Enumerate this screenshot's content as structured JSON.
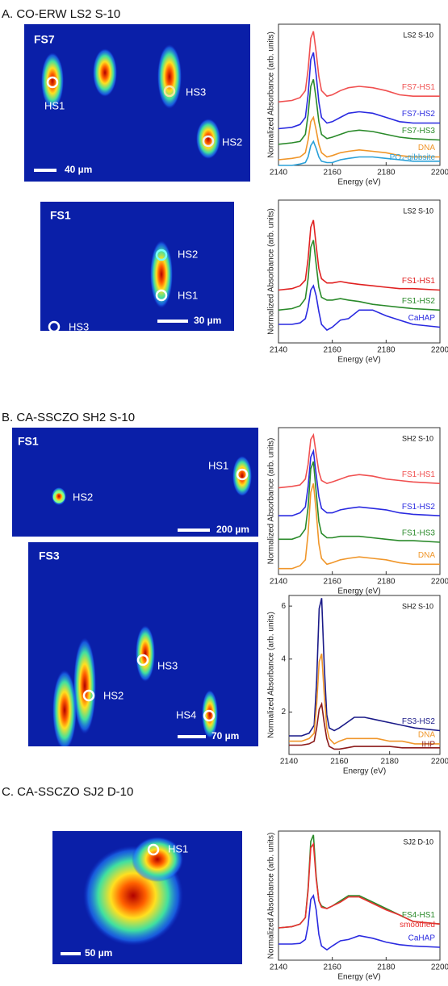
{
  "sections": [
    "A. CO-ERW LS2 S-10",
    "B. CA-SSCZO SH2 S-10",
    "C. CA-SSCZO SJ2 D-10"
  ],
  "maps": [
    {
      "label": "FS7",
      "spots": [
        "HS1",
        "HS2",
        "HS3"
      ],
      "scale_bar": "40 µm"
    },
    {
      "label": "FS1",
      "spots": [
        "HS2",
        "HS1",
        "HS3"
      ],
      "scale_bar": "30 µm"
    },
    {
      "label": "FS1",
      "spots": [
        "HS1",
        "HS2"
      ],
      "scale_bar": "200 µm"
    },
    {
      "label": "FS3",
      "spots": [
        "HS2",
        "HS3",
        "HS4"
      ],
      "scale_bar": "70 µm"
    },
    {
      "spots": [
        "HS1"
      ],
      "scale_bar": "50 µm"
    }
  ],
  "chart_data": [
    {
      "type": "line",
      "annotation": "LS2 S-10",
      "xlabel": "Energy (eV)",
      "ylabel": "Normalized Absorbance (arb. units)",
      "xlim": [
        2140,
        2200
      ],
      "xticks": [
        2140,
        2160,
        2180,
        2200
      ],
      "ylim": [
        0,
        10
      ],
      "x": [
        2140,
        2145,
        2148,
        2150,
        2151,
        2152,
        2153,
        2154,
        2155,
        2156,
        2158,
        2160,
        2163,
        2166,
        2170,
        2175,
        2180,
        2185,
        2190,
        2200
      ],
      "series": [
        {
          "name": "FS7-HS1",
          "color": "#f05050",
          "values": [
            4.5,
            4.6,
            4.8,
            5.3,
            6.8,
            9.0,
            9.5,
            8.0,
            6.3,
            5.3,
            4.9,
            5.0,
            5.3,
            5.5,
            5.6,
            5.5,
            5.3,
            5.0,
            4.9,
            4.9
          ]
        },
        {
          "name": "FS7-HS2",
          "color": "#2a2ae0",
          "values": [
            2.6,
            2.7,
            2.9,
            3.4,
            5.0,
            7.5,
            8.0,
            6.4,
            4.5,
            3.4,
            3.0,
            3.1,
            3.4,
            3.7,
            3.8,
            3.7,
            3.4,
            3.1,
            3.0,
            3.0
          ]
        },
        {
          "name": "FS7-HS3",
          "color": "#2a8a2a",
          "values": [
            1.5,
            1.6,
            1.7,
            2.2,
            3.6,
            5.6,
            6.1,
            4.7,
            3.1,
            2.2,
            1.9,
            2.0,
            2.2,
            2.4,
            2.5,
            2.4,
            2.2,
            2.0,
            1.9,
            1.8
          ]
        },
        {
          "name": "DNA",
          "color": "#f0962a",
          "values": [
            0.4,
            0.5,
            0.6,
            0.9,
            1.8,
            3.1,
            3.4,
            2.5,
            1.5,
            0.9,
            0.6,
            0.7,
            0.9,
            1.0,
            1.1,
            1.0,
            0.9,
            0.7,
            0.6,
            0.6
          ]
        },
        {
          "name": "PO₄-gibbsite",
          "color": "#2aa0d8",
          "values": [
            0.0,
            0.0,
            0.1,
            0.2,
            0.6,
            1.4,
            1.7,
            1.2,
            0.6,
            0.3,
            0.2,
            0.2,
            0.4,
            0.5,
            0.6,
            0.6,
            0.5,
            0.4,
            0.3,
            0.3
          ]
        }
      ]
    },
    {
      "type": "line",
      "annotation": "LS2 S-10",
      "xlabel": "Energy (eV)",
      "ylabel": "Normalized Absorbance (arb. units)",
      "xlim": [
        2140,
        2200
      ],
      "xticks": [
        2140,
        2160,
        2180,
        2200
      ],
      "ylim": [
        0,
        10
      ],
      "x": [
        2140,
        2145,
        2148,
        2150,
        2151,
        2152,
        2153,
        2154,
        2155,
        2156,
        2158,
        2160,
        2163,
        2166,
        2170,
        2175,
        2180,
        2185,
        2190,
        2200
      ],
      "series": [
        {
          "name": "FS1-HS1",
          "color": "#e02020",
          "values": [
            3.7,
            3.8,
            4.0,
            4.4,
            5.9,
            8.1,
            8.6,
            6.8,
            5.2,
            4.5,
            4.2,
            4.2,
            4.3,
            4.2,
            4.1,
            4.0,
            3.9,
            3.8,
            3.8,
            3.7
          ]
        },
        {
          "name": "FS1-HS2",
          "color": "#2a8a2a",
          "values": [
            2.3,
            2.4,
            2.6,
            3.1,
            4.5,
            6.7,
            7.2,
            5.5,
            3.9,
            3.2,
            3.0,
            3.0,
            3.1,
            3.0,
            2.9,
            2.7,
            2.6,
            2.5,
            2.4,
            2.3
          ]
        },
        {
          "name": "CaHAP",
          "color": "#2a2ae0",
          "values": [
            1.3,
            1.3,
            1.4,
            1.7,
            2.5,
            3.7,
            4.0,
            3.3,
            2.2,
            1.3,
            0.9,
            1.1,
            1.6,
            1.7,
            2.3,
            2.3,
            1.9,
            1.6,
            1.3,
            1.1
          ]
        }
      ]
    },
    {
      "type": "line",
      "annotation": "SH2 S-10",
      "xlabel": "Energy (eV)",
      "ylabel": "Normalized Absorbance (arb. units)",
      "xlim": [
        2140,
        2200
      ],
      "xticks": [
        2140,
        2160,
        2180,
        2200
      ],
      "ylim": [
        0,
        10
      ],
      "x": [
        2140,
        2145,
        2148,
        2150,
        2151,
        2152,
        2153,
        2154,
        2155,
        2156,
        2158,
        2160,
        2163,
        2166,
        2170,
        2175,
        2180,
        2185,
        2190,
        2200
      ],
      "series": [
        {
          "name": "FS1-HS1",
          "color": "#f05050",
          "values": [
            5.9,
            6.0,
            6.1,
            6.5,
            7.5,
            9.2,
            9.5,
            8.2,
            7.0,
            6.4,
            6.2,
            6.3,
            6.5,
            6.7,
            6.8,
            6.7,
            6.5,
            6.4,
            6.3,
            6.2
          ]
        },
        {
          "name": "FS1-HS2",
          "color": "#2a2ae0",
          "values": [
            4.0,
            4.0,
            4.2,
            4.6,
            6.0,
            8.0,
            8.4,
            6.8,
            5.3,
            4.5,
            4.2,
            4.2,
            4.4,
            4.5,
            4.6,
            4.5,
            4.4,
            4.2,
            4.1,
            4.0
          ]
        },
        {
          "name": "FS1-HS3",
          "color": "#2a8a2a",
          "values": [
            2.4,
            2.4,
            2.6,
            3.1,
            4.6,
            7.2,
            7.7,
            5.6,
            3.6,
            2.8,
            2.5,
            2.5,
            2.6,
            2.6,
            2.6,
            2.5,
            2.4,
            2.3,
            2.3,
            2.2
          ]
        },
        {
          "name": "DNA",
          "color": "#f0962a",
          "values": [
            0.4,
            0.4,
            0.6,
            1.0,
            2.8,
            5.6,
            6.2,
            4.3,
            2.1,
            1.1,
            0.7,
            0.8,
            1.0,
            1.1,
            1.2,
            1.1,
            1.0,
            0.8,
            0.7,
            0.7
          ]
        }
      ]
    },
    {
      "type": "line",
      "annotation": "SH2 S-10",
      "xlabel": "Energy (eV)",
      "ylabel": "Normalized Absorbance (arb. units)",
      "xlim": [
        2140,
        2200
      ],
      "xticks": [
        2140,
        2160,
        2180,
        2200
      ],
      "ylim": [
        0.4,
        6.4
      ],
      "yticks": [
        2,
        4,
        6
      ],
      "x": [
        2140,
        2145,
        2148,
        2150,
        2151,
        2152,
        2153,
        2154,
        2155,
        2156,
        2158,
        2160,
        2163,
        2166,
        2170,
        2175,
        2180,
        2185,
        2190,
        2200
      ],
      "series": [
        {
          "name": "FS3-HS2",
          "color": "#1a1a88",
          "values": [
            1.1,
            1.1,
            1.2,
            1.5,
            3.2,
            5.9,
            6.3,
            3.8,
            1.9,
            1.4,
            1.3,
            1.4,
            1.6,
            1.8,
            1.8,
            1.7,
            1.6,
            1.5,
            1.4,
            1.3
          ]
        },
        {
          "name": "DNA",
          "color": "#f0962a",
          "values": [
            0.9,
            0.9,
            1.0,
            1.2,
            2.3,
            3.9,
            4.2,
            2.7,
            1.4,
            1.0,
            0.8,
            0.9,
            1.0,
            1.0,
            1.0,
            1.0,
            0.9,
            0.9,
            0.8,
            0.8
          ]
        },
        {
          "name": "IHP",
          "color": "#8b1a1a",
          "values": [
            0.75,
            0.75,
            0.8,
            0.9,
            1.4,
            2.1,
            2.3,
            1.6,
            1.0,
            0.7,
            0.6,
            0.6,
            0.65,
            0.7,
            0.7,
            0.7,
            0.7,
            0.65,
            0.65,
            0.65
          ]
        }
      ]
    },
    {
      "type": "line",
      "annotation": "SJ2 D-10",
      "xlabel": "Energy (eV)",
      "ylabel": "Normalized Absorbance (arb. units)",
      "xlim": [
        2140,
        2200
      ],
      "xticks": [
        2140,
        2160,
        2180,
        2200
      ],
      "ylim": [
        0,
        10
      ],
      "x": [
        2140,
        2145,
        2148,
        2150,
        2151,
        2152,
        2153,
        2154,
        2155,
        2156,
        2158,
        2160,
        2163,
        2166,
        2170,
        2175,
        2180,
        2185,
        2190,
        2200
      ],
      "series": [
        {
          "name": "FS4-HS1",
          "color": "#2a8a2a",
          "values": [
            2.5,
            2.6,
            2.8,
            3.3,
            5.6,
            9.2,
            9.7,
            6.5,
            4.6,
            4.2,
            4.0,
            4.2,
            4.6,
            5.0,
            5.0,
            4.5,
            4.0,
            3.5,
            3.0,
            2.8
          ]
        },
        {
          "name": "smoothed",
          "color": "#e83030",
          "values": [
            2.5,
            2.6,
            2.8,
            3.3,
            5.4,
            8.7,
            9.0,
            6.3,
            4.6,
            4.1,
            4.0,
            4.2,
            4.5,
            4.9,
            4.9,
            4.4,
            3.9,
            3.5,
            3.0,
            2.8
          ]
        },
        {
          "name": "CaHAP",
          "color": "#2a2ae0",
          "values": [
            1.25,
            1.25,
            1.3,
            1.6,
            2.7,
            4.7,
            5.0,
            3.9,
            2.0,
            1.1,
            0.8,
            1.1,
            1.5,
            1.6,
            1.9,
            1.7,
            1.4,
            1.2,
            1.1,
            1.0
          ]
        }
      ]
    }
  ]
}
